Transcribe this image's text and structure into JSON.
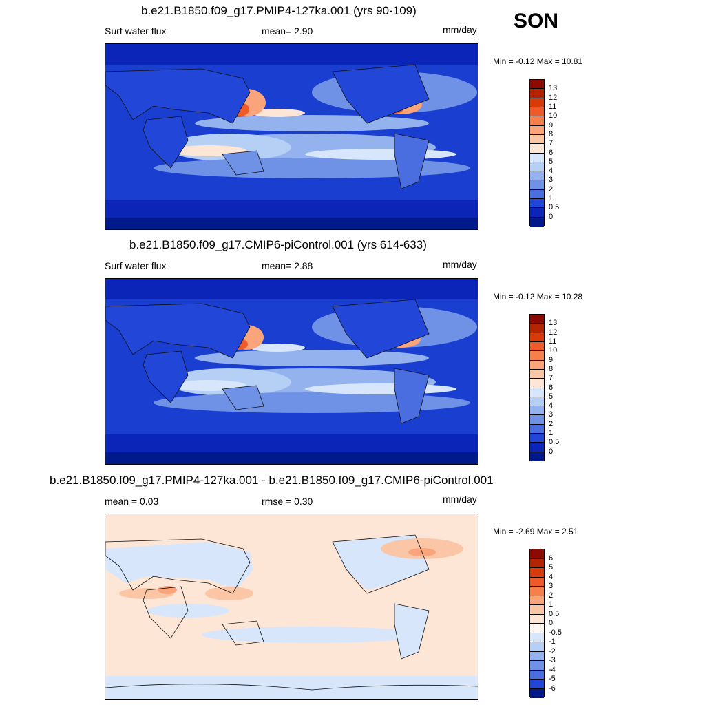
{
  "season": "SON",
  "panels": [
    {
      "title": "b.e21.B1850.f09_g17.PMIP4-127ka.001 (yrs 90-109)",
      "left_label": "Surf water flux",
      "mid_label": "mean=   2.90",
      "units": "mm/day",
      "minmax": "Min =  -0.12 Max =  10.81"
    },
    {
      "title": "b.e21.B1850.f09_g17.CMIP6-piControl.001 (yrs 614-633)",
      "left_label": "Surf water flux",
      "mid_label": "mean=   2.88",
      "units": "mm/day",
      "minmax": "Min =  -0.12 Max =  10.28"
    },
    {
      "title": "b.e21.B1850.f09_g17.PMIP4-127ka.001 - b.e21.B1850.f09_g17.CMIP6-piControl.001",
      "left_label": "mean =   0.03",
      "mid_label": "rmse =   0.30",
      "units": "mm/day",
      "minmax": "Min =  -2.69 Max =   2.51"
    }
  ],
  "colorbar_abs": {
    "labels": [
      "13",
      "12",
      "11",
      "10",
      "9",
      "8",
      "7",
      "6",
      "5",
      "4",
      "3",
      "2",
      "1",
      "0.5",
      "0"
    ],
    "colors": [
      "#8c0a00",
      "#b32400",
      "#d83a0a",
      "#ee5a28",
      "#f5804c",
      "#f9a47a",
      "#fbc6a6",
      "#fde6d6",
      "#d8e6fb",
      "#b6cff5",
      "#93b2ee",
      "#6f91e6",
      "#4a6ee0",
      "#2146d8",
      "#0a25b8",
      "#001a8c"
    ]
  },
  "colorbar_diff": {
    "labels": [
      "6",
      "5",
      "4",
      "3",
      "2",
      "1",
      "0.5",
      "0",
      "-0.5",
      "-1",
      "-2",
      "-3",
      "-4",
      "-5",
      "-6"
    ],
    "colors": [
      "#8c0a00",
      "#b32400",
      "#d83a0a",
      "#ee5a28",
      "#f5804c",
      "#f9a47a",
      "#fbc6a6",
      "#fde6d6",
      "#fff8f2",
      "#d8e6fb",
      "#b6cff5",
      "#93b2ee",
      "#6f91e6",
      "#4a6ee0",
      "#2146d8",
      "#001a8c"
    ]
  }
}
